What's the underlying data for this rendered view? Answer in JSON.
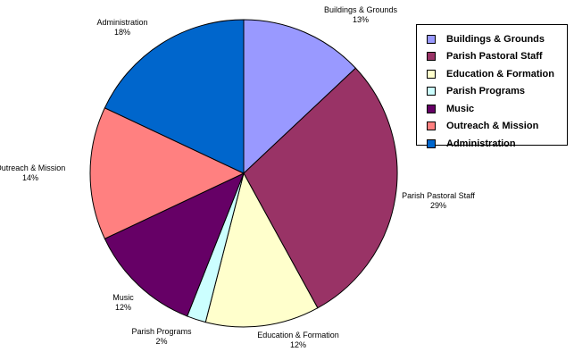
{
  "chart_data": {
    "type": "pie",
    "slices": [
      {
        "label": "Buildings & Grounds",
        "percent_label": "13%",
        "value": 13,
        "color": "#9999ff"
      },
      {
        "label": "Parish Pastoral Staff",
        "percent_label": "29%",
        "value": 29,
        "color": "#993366"
      },
      {
        "label": "Education & Formation",
        "percent_label": "12%",
        "value": 12,
        "color": "#ffffcc"
      },
      {
        "label": "Parish Programs",
        "percent_label": "2%",
        "value": 2,
        "color": "#ccffff"
      },
      {
        "label": "Music",
        "percent_label": "12%",
        "value": 12,
        "color": "#660066"
      },
      {
        "label": "Outreach & Mission",
        "percent_label": "14%",
        "value": 14,
        "color": "#ff8080"
      },
      {
        "label": "Administration",
        "percent_label": "18%",
        "value": 18,
        "color": "#0066cc"
      }
    ],
    "start_angle": "12 o'clock",
    "direction": "clockwise",
    "legend_position": "top-right"
  }
}
